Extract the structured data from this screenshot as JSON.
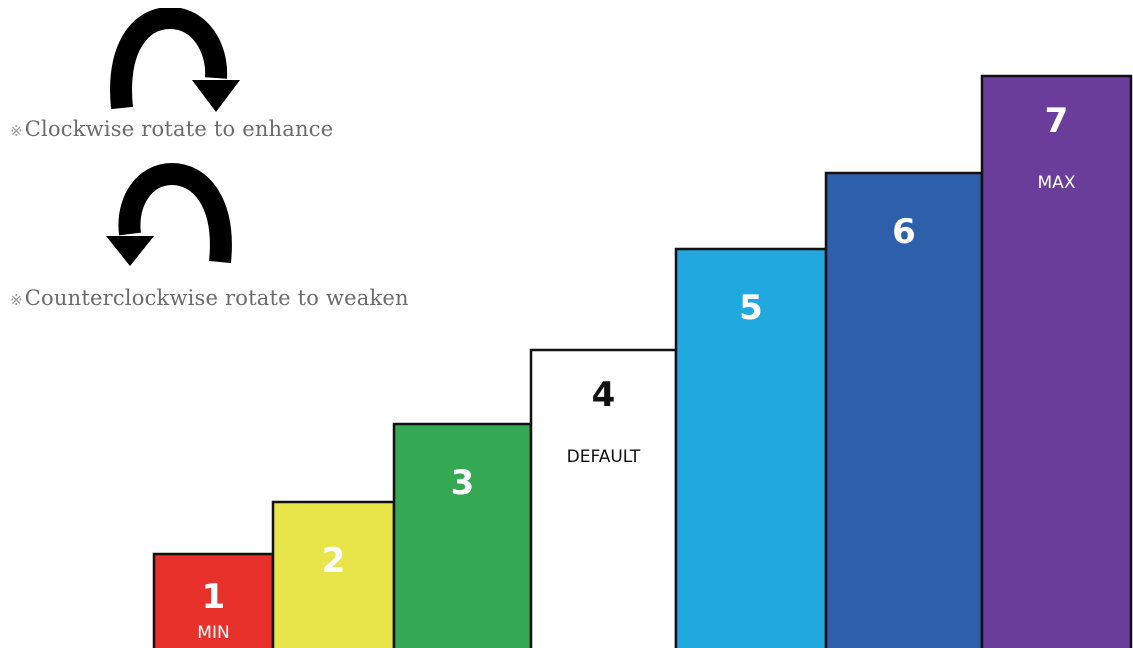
{
  "instructions": {
    "clockwise": "Clockwise rotate to enhance",
    "counterclockwise": "Counterclockwise rotate to weaken",
    "mark": "※"
  },
  "icons": {
    "clockwise": "clockwise-arrow-icon",
    "counterclockwise": "counterclockwise-arrow-icon"
  },
  "levels": [
    {
      "level": "1",
      "tag": "MIN",
      "value": 1,
      "color": "#e8312a",
      "text_color": "#ffffff"
    },
    {
      "level": "2",
      "tag": "",
      "value": 2,
      "color": "#e8e54a",
      "text_color": "#ffffff"
    },
    {
      "level": "3",
      "tag": "",
      "value": 3,
      "color": "#34a853",
      "text_color": "#ffffff"
    },
    {
      "level": "4",
      "tag": "DEFAULT",
      "value": 4,
      "color": "#ffffff",
      "text_color": "#111111"
    },
    {
      "level": "5",
      "tag": "",
      "value": 5,
      "color": "#21a8df",
      "text_color": "#ffffff"
    },
    {
      "level": "6",
      "tag": "",
      "value": 6,
      "color": "#2e5fab",
      "text_color": "#ffffff"
    },
    {
      "level": "7",
      "tag": "MAX",
      "value": 7,
      "color": "#6a3d9a",
      "text_color": "#ffffff"
    }
  ]
}
